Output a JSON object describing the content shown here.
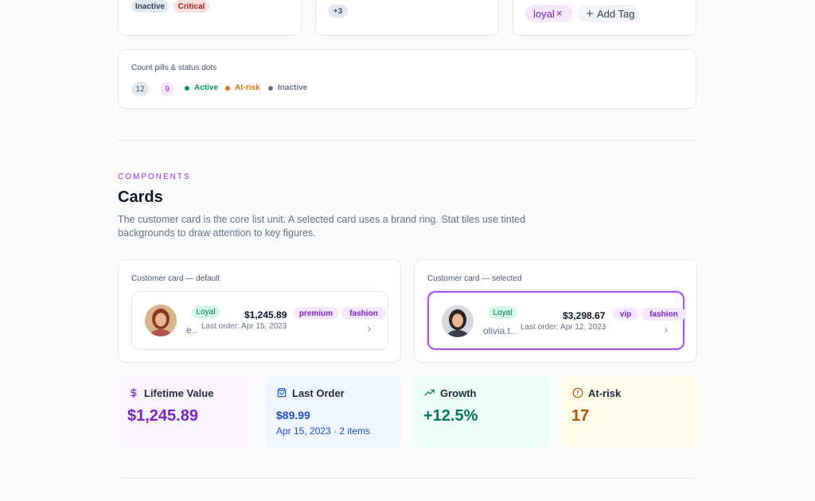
{
  "top_cards": {
    "status_pills": [
      {
        "label": "Inactive",
        "background": "#e2e8f0",
        "color": "#334155"
      },
      {
        "label": "Critical",
        "background": "#fee2e2",
        "color": "#b91c1c"
      }
    ],
    "overflow_pill": "+3",
    "tag": "loyal",
    "tag_remove": "×",
    "add_tag": "Add Tag"
  },
  "count_pills": {
    "title": "Count pills & status dots",
    "counts": [
      {
        "label": "12",
        "background": "#e2e8f0",
        "color": "#475569"
      },
      {
        "label": "9",
        "background": "#f3e8ff",
        "color": "#7e22ce"
      }
    ],
    "statuses": [
      {
        "label": "Active",
        "color": "#059669"
      },
      {
        "label": "At-risk",
        "color": "#d97706"
      },
      {
        "label": "Inactive",
        "color": "#64748b"
      }
    ]
  },
  "section": {
    "eyebrow": "COMPONENTS",
    "title": "Cards",
    "description": "The customer card is the core list unit. A selected card uses a brand ring. Stat tiles use tinted backgrounds to draw attention to key figures."
  },
  "customer_cards": [
    {
      "label": "Customer card — default",
      "status": "Loyal",
      "name": "e…",
      "amount": "$1,245.89",
      "last_order": "Last order: Apr 15, 2023",
      "tags": [
        "premium",
        "fashion"
      ],
      "selected": false
    },
    {
      "label": "Customer card — selected",
      "status": "Loyal",
      "name": "olivia.t…",
      "amount": "$3,298.67",
      "last_order": "Last order: Apr 12, 2023",
      "tags": [
        "vip",
        "fashion"
      ],
      "selected": true
    }
  ],
  "stat_tiles": [
    {
      "label": "Lifetime Value",
      "value": "$1,245.89",
      "icon": "dollar",
      "color": "#7e22ce",
      "background": "#faf5ff"
    },
    {
      "label": "Last Order",
      "value": "$89.99",
      "detail": "Apr 15, 2023 · 2 items",
      "icon": "bag",
      "color": "#1d4ed8",
      "background": "#eff6ff"
    },
    {
      "label": "Growth",
      "value": "+12.5%",
      "icon": "trend",
      "color": "#047857",
      "background": "#ecfdf5"
    },
    {
      "label": "At-risk",
      "value": "17",
      "icon": "alert",
      "color": "#b45309",
      "background": "#fefce8"
    }
  ]
}
